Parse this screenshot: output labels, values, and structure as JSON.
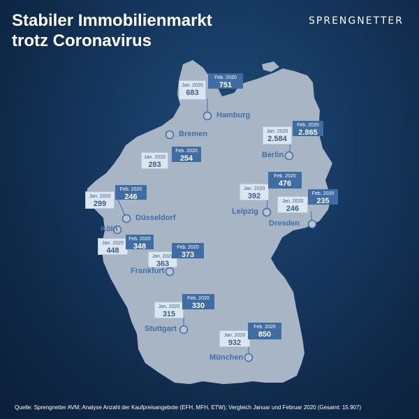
{
  "title": {
    "line1": "Stabiler Immobilienmarkt",
    "line2": "trotz Coronavirus"
  },
  "logo": "SPRENGNETTER",
  "source": "Quelle: Sprengnetter AVM; Analyse Anzahl der Kaufpreisangebote (EFH, MFH, ETW); Vergleich Januar und Februar 2020 (Gesamt: 15.907)",
  "labels": {
    "jan": "Jan. 2020",
    "feb": "Feb. 2020"
  },
  "colors": {
    "background": "#0f2949",
    "land": "#a8b5c4",
    "accent": "#3f6da3",
    "city_text": "#3f6fa6",
    "jan_box": "#dce6f1"
  },
  "cities": [
    {
      "name": "Hamburg"
    },
    {
      "name": "Bremen"
    },
    {
      "name": "Berlin"
    },
    {
      "name": "Düsseldorf"
    },
    {
      "name": "Köln"
    },
    {
      "name": "Leipzig"
    },
    {
      "name": "Dresden"
    },
    {
      "name": "Frankfurt"
    },
    {
      "name": "Stuttgart"
    },
    {
      "name": "München"
    }
  ],
  "listings": [
    {
      "label": "Hamburg",
      "jan": "683",
      "feb": "751"
    },
    {
      "label": "Bremen",
      "jan": "283",
      "feb": "254"
    },
    {
      "label": "Berlin",
      "jan": "2.584",
      "feb": "2.865"
    },
    {
      "label": "Düsseldorf",
      "jan": "299",
      "feb": "246"
    },
    {
      "label": "Köln",
      "jan": "448",
      "feb": "348"
    },
    {
      "label": "Leipzig",
      "jan": "392",
      "feb": "476"
    },
    {
      "label": "Dresden",
      "jan": "246",
      "feb": "235"
    },
    {
      "label": "Frankfurt",
      "jan": "363",
      "feb": "373"
    },
    {
      "label": "Stuttgart",
      "jan": "315",
      "feb": "330"
    },
    {
      "label": "München",
      "jan": "932",
      "feb": "850"
    }
  ]
}
